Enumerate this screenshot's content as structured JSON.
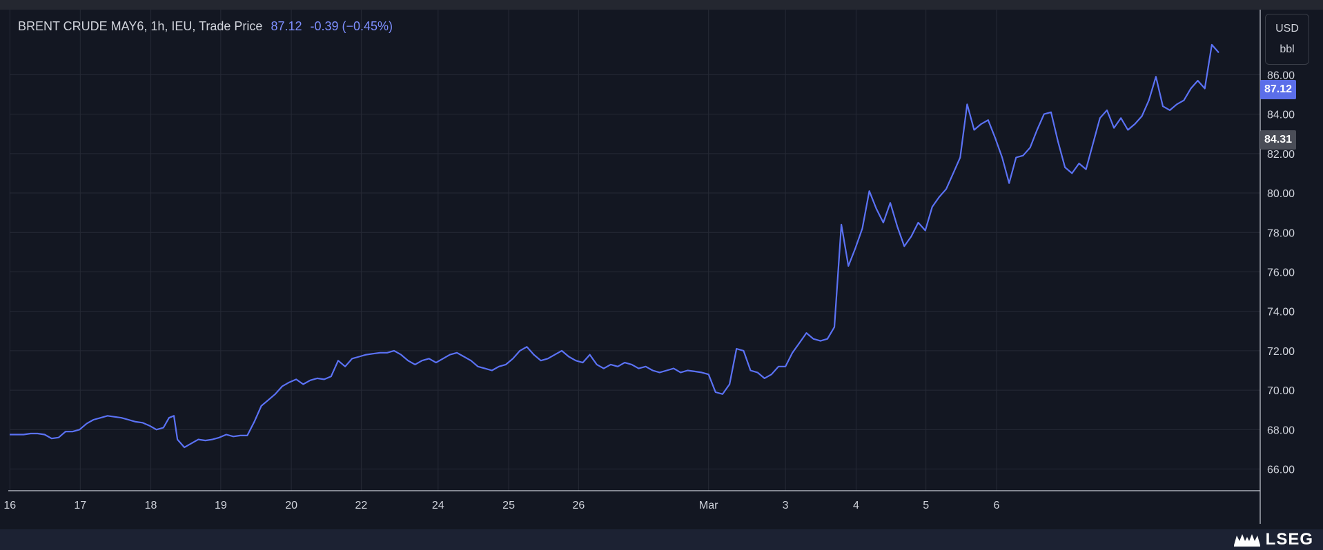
{
  "title": {
    "symbol": "BRENT CRUDE MAY6, 1h, IEU, Trade Price",
    "last": "87.12",
    "change": "-0.39 (−0.45%)"
  },
  "units": {
    "currency": "USD",
    "measure": "bbl"
  },
  "price_tags": {
    "last": "87.12",
    "ref": "84.31"
  },
  "brand": {
    "text": "LSEG",
    "icon": "lseg-mark-icon"
  },
  "colors": {
    "background": "#131722",
    "line": "#5b72f5",
    "last_tag": "#5b6ee9",
    "ref_tag": "#4a4d57",
    "grid": "#262a36",
    "footer": "#1c2233"
  },
  "chart_data": {
    "type": "line",
    "title": "BRENT CRUDE MAY6, 1h, IEU, Trade Price",
    "xlabel": "",
    "ylabel": "",
    "ylim": [
      64.9,
      89.3
    ],
    "y_ticks": [
      "66.00",
      "68.00",
      "70.00",
      "72.00",
      "74.00",
      "76.00",
      "78.00",
      "80.00",
      "82.00",
      "84.00",
      "86.00"
    ],
    "x_ticks": [
      {
        "label": "16",
        "t": 0.03
      },
      {
        "label": "17",
        "t": 10.1
      },
      {
        "label": "18",
        "t": 20.2
      },
      {
        "label": "19",
        "t": 30.2
      },
      {
        "label": "20",
        "t": 40.3
      },
      {
        "label": "22",
        "t": 50.3
      },
      {
        "label": "24",
        "t": 61.3
      },
      {
        "label": "25",
        "t": 71.4
      },
      {
        "label": "26",
        "t": 81.4
      },
      {
        "label": "Mar",
        "t": 100
      },
      {
        "label": "3",
        "t": 111
      },
      {
        "label": "4",
        "t": 121.1
      },
      {
        "label": "5",
        "t": 131.1
      },
      {
        "label": "6",
        "t": 141.2
      }
    ],
    "grid": true,
    "series": [
      {
        "values": [
          [
            0,
            67.75
          ],
          [
            2,
            67.75
          ],
          [
            3,
            67.8
          ],
          [
            4,
            67.8
          ],
          [
            5,
            67.75
          ],
          [
            6,
            67.55
          ],
          [
            7,
            67.6
          ],
          [
            8,
            67.9
          ],
          [
            9,
            67.9
          ],
          [
            10,
            68.0
          ],
          [
            11,
            68.3
          ],
          [
            12,
            68.5
          ],
          [
            13,
            68.6
          ],
          [
            14,
            68.7
          ],
          [
            16,
            68.6
          ],
          [
            17,
            68.5
          ],
          [
            18,
            68.4
          ],
          [
            19,
            68.35
          ],
          [
            20,
            68.2
          ],
          [
            21,
            68.0
          ],
          [
            22,
            68.1
          ],
          [
            22.8,
            68.6
          ],
          [
            23.5,
            68.7
          ],
          [
            24,
            67.5
          ],
          [
            25,
            67.1
          ],
          [
            26,
            67.3
          ],
          [
            27,
            67.5
          ],
          [
            28,
            67.45
          ],
          [
            29,
            67.5
          ],
          [
            30,
            67.6
          ],
          [
            31,
            67.75
          ],
          [
            32,
            67.65
          ],
          [
            33,
            67.7
          ],
          [
            34,
            67.7
          ],
          [
            35,
            68.4
          ],
          [
            36,
            69.2
          ],
          [
            37,
            69.5
          ],
          [
            38,
            69.8
          ],
          [
            39,
            70.2
          ],
          [
            40,
            70.4
          ],
          [
            41,
            70.55
          ],
          [
            42,
            70.3
          ],
          [
            43,
            70.5
          ],
          [
            44,
            70.6
          ],
          [
            45,
            70.55
          ],
          [
            46,
            70.7
          ],
          [
            47,
            71.5
          ],
          [
            48,
            71.2
          ],
          [
            49,
            71.6
          ],
          [
            50,
            71.7
          ],
          [
            51,
            71.8
          ],
          [
            52,
            71.85
          ],
          [
            53,
            71.9
          ],
          [
            54,
            71.9
          ],
          [
            55,
            72.0
          ],
          [
            56,
            71.8
          ],
          [
            57,
            71.5
          ],
          [
            58,
            71.3
          ],
          [
            59,
            71.5
          ],
          [
            60,
            71.6
          ],
          [
            61,
            71.4
          ],
          [
            62,
            71.6
          ],
          [
            63,
            71.8
          ],
          [
            64,
            71.9
          ],
          [
            65,
            71.7
          ],
          [
            66,
            71.5
          ],
          [
            67,
            71.2
          ],
          [
            68,
            71.1
          ],
          [
            69,
            71.0
          ],
          [
            70,
            71.2
          ],
          [
            71,
            71.3
          ],
          [
            72,
            71.6
          ],
          [
            73,
            72.0
          ],
          [
            74,
            72.2
          ],
          [
            75,
            71.8
          ],
          [
            76,
            71.5
          ],
          [
            77,
            71.6
          ],
          [
            78,
            71.8
          ],
          [
            79,
            72.0
          ],
          [
            80,
            71.7
          ],
          [
            81,
            71.5
          ],
          [
            82,
            71.4
          ],
          [
            83,
            71.8
          ],
          [
            84,
            71.3
          ],
          [
            85,
            71.1
          ],
          [
            86,
            71.3
          ],
          [
            87,
            71.2
          ],
          [
            88,
            71.4
          ],
          [
            89,
            71.3
          ],
          [
            90,
            71.1
          ],
          [
            91,
            71.2
          ],
          [
            92,
            71.0
          ],
          [
            93,
            70.9
          ],
          [
            94,
            71.0
          ],
          [
            95,
            71.1
          ],
          [
            96,
            70.9
          ],
          [
            97,
            71.0
          ],
          [
            98,
            70.95
          ],
          [
            99,
            70.9
          ],
          [
            100,
            70.8
          ],
          [
            101,
            69.9
          ],
          [
            102,
            69.8
          ],
          [
            103,
            70.3
          ],
          [
            104,
            72.1
          ],
          [
            105,
            72.0
          ],
          [
            106,
            71.0
          ],
          [
            107,
            70.9
          ],
          [
            108,
            70.6
          ],
          [
            109,
            70.8
          ],
          [
            110,
            71.2
          ],
          [
            111,
            71.2
          ],
          [
            112,
            71.9
          ],
          [
            113,
            72.4
          ],
          [
            114,
            72.9
          ],
          [
            115,
            72.6
          ],
          [
            116,
            72.5
          ],
          [
            117,
            72.6
          ],
          [
            118,
            73.2
          ],
          [
            119,
            78.4
          ],
          [
            120,
            76.3
          ],
          [
            121,
            77.2
          ],
          [
            122,
            78.2
          ],
          [
            123,
            80.1
          ],
          [
            124,
            79.2
          ],
          [
            125,
            78.5
          ],
          [
            126,
            79.5
          ],
          [
            127,
            78.3
          ],
          [
            128,
            77.3
          ],
          [
            129,
            77.8
          ],
          [
            130,
            78.5
          ],
          [
            131,
            78.1
          ],
          [
            132,
            79.3
          ],
          [
            133,
            79.8
          ],
          [
            134,
            80.2
          ],
          [
            135,
            81.0
          ],
          [
            136,
            81.8
          ],
          [
            137,
            84.5
          ],
          [
            138,
            83.2
          ],
          [
            139,
            83.5
          ],
          [
            140,
            83.7
          ],
          [
            141,
            82.8
          ],
          [
            142,
            81.8
          ],
          [
            143,
            80.5
          ],
          [
            144,
            81.8
          ],
          [
            145,
            81.9
          ],
          [
            146,
            82.3
          ],
          [
            147,
            83.2
          ],
          [
            148,
            84.0
          ],
          [
            149,
            84.1
          ],
          [
            150,
            82.6
          ],
          [
            151,
            81.3
          ],
          [
            152,
            81.0
          ],
          [
            153,
            81.5
          ],
          [
            154,
            81.2
          ],
          [
            155,
            82.5
          ],
          [
            156,
            83.8
          ],
          [
            157,
            84.2
          ],
          [
            158,
            83.3
          ],
          [
            159,
            83.8
          ],
          [
            160,
            83.2
          ],
          [
            161,
            83.5
          ],
          [
            162,
            83.9
          ],
          [
            163,
            84.7
          ],
          [
            164,
            85.9
          ],
          [
            165,
            84.4
          ],
          [
            166,
            84.2
          ],
          [
            167,
            84.5
          ],
          [
            168,
            84.7
          ],
          [
            169,
            85.3
          ],
          [
            170,
            85.7
          ],
          [
            171,
            85.3
          ],
          [
            172,
            87.52
          ],
          [
            173,
            87.12
          ]
        ]
      }
    ]
  }
}
